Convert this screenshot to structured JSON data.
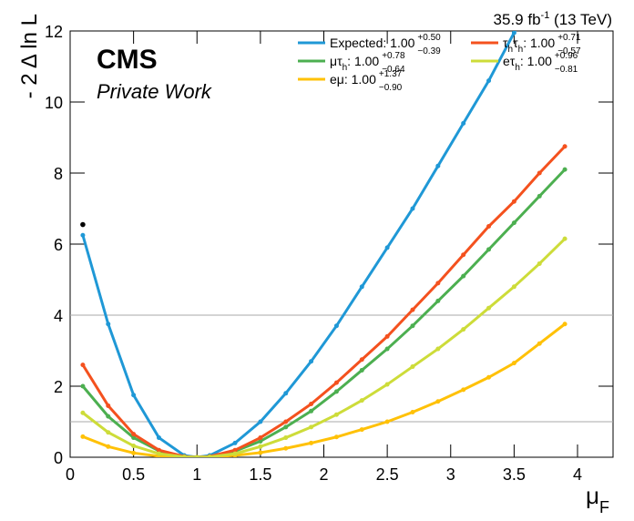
{
  "chart_data": {
    "type": "line",
    "title": "CMS",
    "subtitle": "Private Work",
    "lumi": [
      "35.9 fb",
      "-1",
      " (13 TeV)"
    ],
    "xlabel": [
      "μ",
      "F"
    ],
    "ylabel": "- 2 Δ ln L",
    "xlim": [
      0,
      4.28
    ],
    "ylim": [
      0,
      12
    ],
    "xticks": [
      0,
      0.5,
      1,
      1.5,
      2,
      2.5,
      3,
      3.5,
      4
    ],
    "yticks": [
      0,
      2,
      4,
      6,
      8,
      10,
      12
    ],
    "hlines": [
      1,
      4
    ],
    "hline_color": "#aaaaaa",
    "x": [
      0.1,
      0.3,
      0.5,
      0.7,
      0.9,
      1.0,
      1.1,
      1.3,
      1.5,
      1.7,
      1.9,
      2.1,
      2.3,
      2.5,
      2.7,
      2.9,
      3.1,
      3.3,
      3.5,
      3.7,
      3.9
    ],
    "series": [
      {
        "name": [
          "Expected: 1.00"
        ],
        "up": "+0.50",
        "down": "−0.39",
        "color": "#1f98d6",
        "values": [
          6.25,
          3.75,
          1.75,
          0.55,
          0.05,
          0,
          0.05,
          0.4,
          1.0,
          1.8,
          2.7,
          3.7,
          4.8,
          5.9,
          7.0,
          8.2,
          9.4,
          10.6,
          11.95,
          13.3,
          null
        ]
      },
      {
        "name": [
          "μτ",
          "h",
          ": 1.00"
        ],
        "up": "+0.78",
        "down": "−0.64",
        "color": "#4caf50",
        "values": [
          2.0,
          1.15,
          0.55,
          0.18,
          0.02,
          0,
          0.02,
          0.17,
          0.45,
          0.85,
          1.3,
          1.85,
          2.45,
          3.05,
          3.7,
          4.4,
          5.1,
          5.85,
          6.6,
          7.35,
          8.1
        ]
      },
      {
        "name": [
          "eμ: 1.00"
        ],
        "up": "+1.37",
        "down": "−0.90",
        "color": "#ffc107",
        "values": [
          0.58,
          0.3,
          0.12,
          0.03,
          0,
          0,
          0.01,
          0.05,
          0.13,
          0.25,
          0.4,
          0.57,
          0.78,
          1.0,
          1.27,
          1.57,
          1.9,
          2.25,
          2.65,
          3.2,
          3.75
        ]
      },
      {
        "name": [
          "τ",
          "h",
          "τ",
          "h",
          ": 1.00"
        ],
        "up": "+0.71",
        "down": "−0.57",
        "color": "#f4511e",
        "values": [
          2.6,
          1.45,
          0.65,
          0.2,
          0.02,
          0,
          0.02,
          0.2,
          0.55,
          1.0,
          1.5,
          2.1,
          2.75,
          3.4,
          4.15,
          4.9,
          5.7,
          6.5,
          7.2,
          8.0,
          8.75
        ]
      },
      {
        "name": [
          "eτ",
          "h",
          ": 1.00"
        ],
        "up": "+0.96",
        "down": "−0.81",
        "color": "#cddc39",
        "values": [
          1.25,
          0.7,
          0.32,
          0.1,
          0.01,
          0,
          0.01,
          0.1,
          0.3,
          0.55,
          0.85,
          1.2,
          1.6,
          2.05,
          2.55,
          3.05,
          3.6,
          4.2,
          4.8,
          5.45,
          6.15
        ]
      }
    ],
    "extra_points": {
      "x": [
        0.1
      ],
      "values": [
        6.55
      ],
      "color": "#000000"
    }
  }
}
